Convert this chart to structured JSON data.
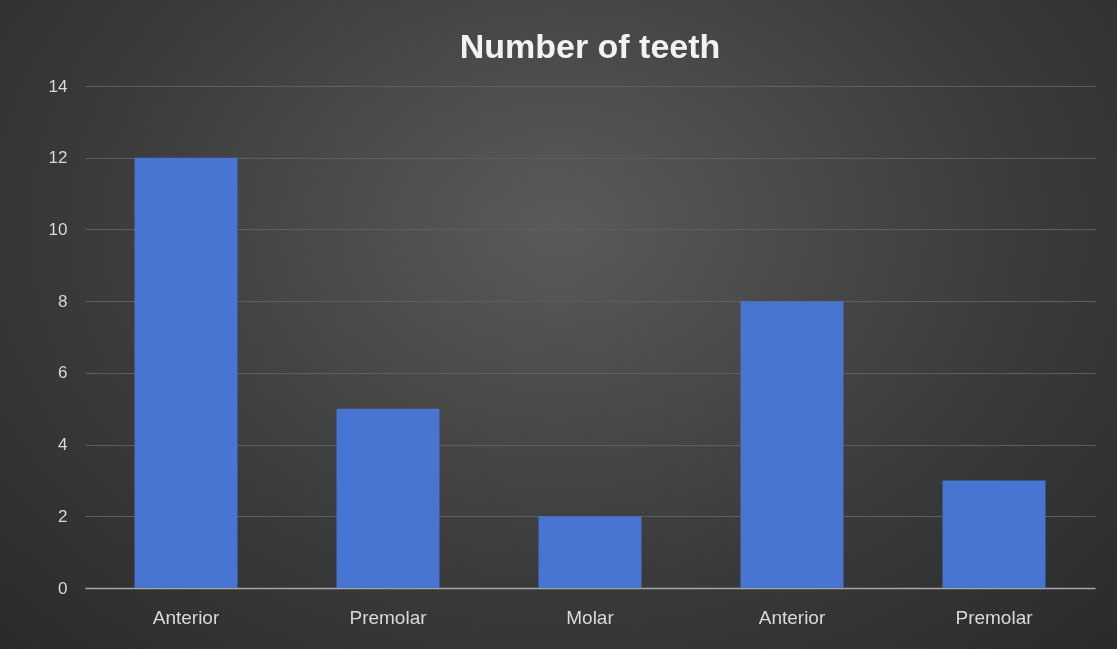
{
  "chart_data": {
    "type": "bar",
    "title": "Number of teeth",
    "categories": [
      "Anterior",
      "Premolar",
      "Molar",
      "Anterior",
      "Premolar"
    ],
    "values": [
      12,
      5,
      2,
      8,
      3
    ],
    "color": "#4775d1",
    "ylim": [
      0,
      14
    ],
    "yticks": [
      0,
      2,
      4,
      6,
      8,
      10,
      12,
      14
    ],
    "grid": true
  }
}
